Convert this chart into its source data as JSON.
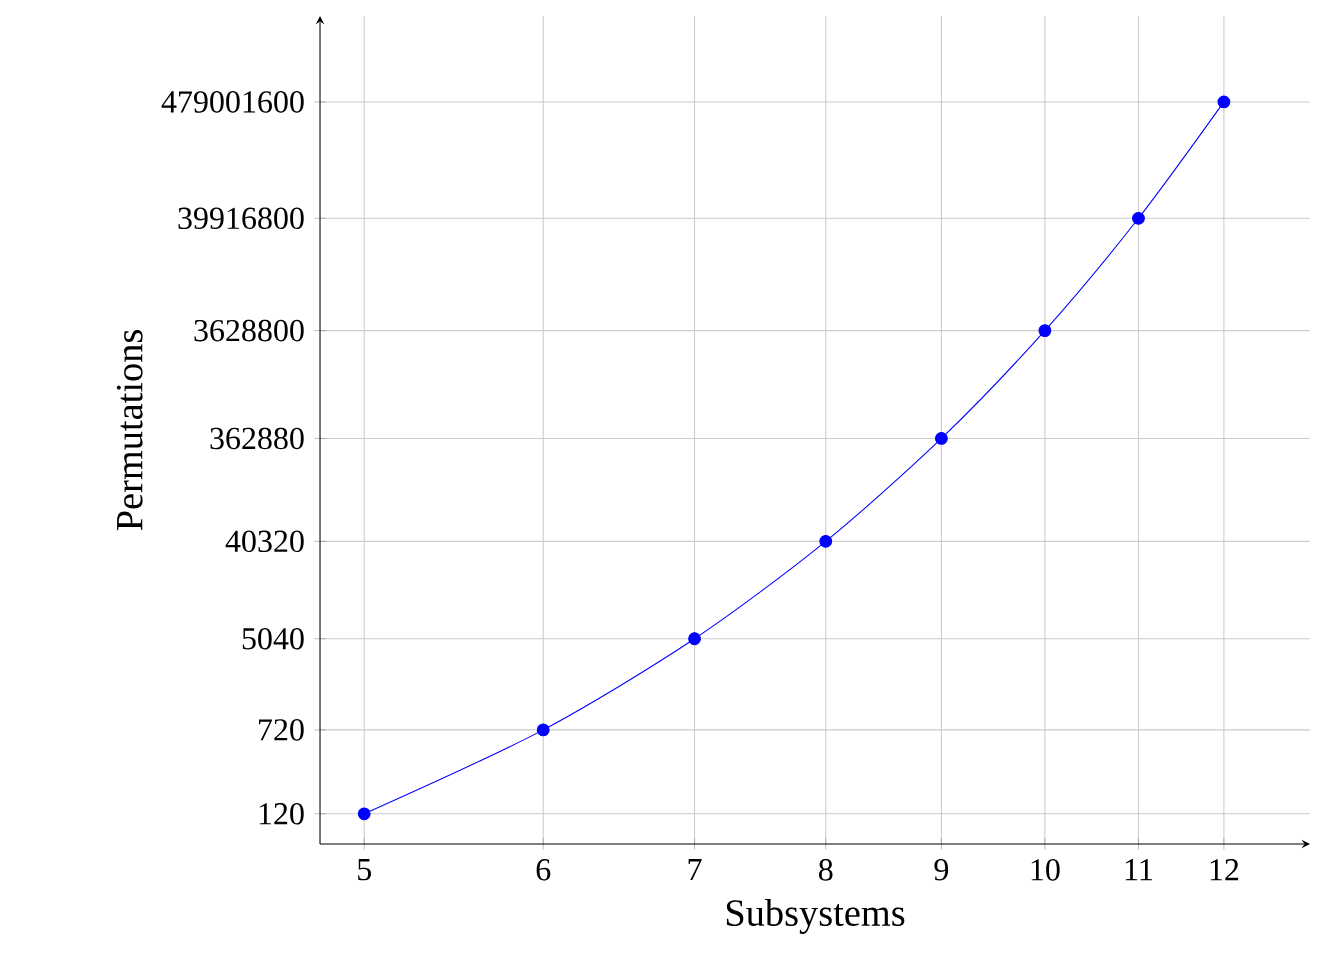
{
  "chart_data": {
    "type": "line",
    "xlabel": "Subsystems",
    "ylabel": "Permutations",
    "x": [
      5,
      6,
      7,
      8,
      9,
      10,
      11,
      12
    ],
    "series": [
      {
        "color": "#0000ff",
        "values": [
          120,
          720,
          5040,
          40320,
          362880,
          3628800,
          39916800,
          479001600
        ]
      }
    ],
    "xlim": [
      4.78,
      13.1
    ],
    "ylim": [
      63,
      3000000000
    ],
    "xticks": [
      5,
      6,
      7,
      8,
      9,
      10,
      11,
      12
    ],
    "yticks": [
      120,
      720,
      5040,
      40320,
      362880,
      3628800,
      39916800,
      479001600
    ],
    "log": "xy",
    "grid": true,
    "marker": "circle",
    "line_style": "solid"
  }
}
